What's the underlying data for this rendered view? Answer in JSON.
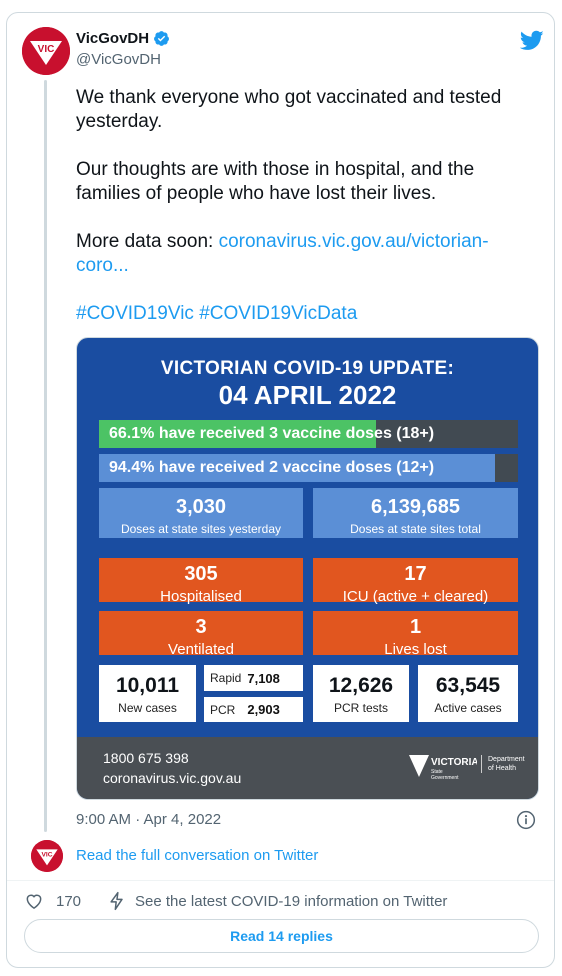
{
  "tweet": {
    "author_name": "VicGovDH",
    "handle": "@VicGovDH",
    "verified": true,
    "avatar_text": "VIC",
    "text": {
      "line1": "We thank everyone who got vaccinated and tested yesterday.",
      "line2": "Our thoughts are with those in hospital, and the families of people who have lost their lives.",
      "line3_prefix": "More data soon: ",
      "line3_link": "coronavirus.vic.gov.au/victorian-coro...",
      "hashtags": "#COVID19Vic #COVID19VicData"
    },
    "timestamp": "9:00 AM · Apr 4, 2022"
  },
  "infographic": {
    "title": "VICTORIAN COVID-19 UPDATE:",
    "date": "04 APRIL 2022",
    "bars": [
      {
        "label": "66.1% have received 3 vaccine doses (18+)",
        "fill_percent": 66.1,
        "color": "#4cc365"
      },
      {
        "label": "94.4% have received 2 vaccine doses (12+)",
        "fill_percent": 94.4,
        "color": "#5b8fd6"
      }
    ],
    "doses_yesterday": {
      "value": "3,030",
      "label": "Doses at state sites yesterday"
    },
    "doses_total": {
      "value": "6,139,685",
      "label": "Doses at state sites total"
    },
    "hospitalised": {
      "value": "305",
      "label": "Hospitalised"
    },
    "icu": {
      "value": "17",
      "label": "ICU (active + cleared)"
    },
    "ventilated": {
      "value": "3",
      "label": "Ventilated"
    },
    "lives_lost": {
      "value": "1",
      "label": "Lives lost"
    },
    "new_cases": {
      "value": "10,011",
      "label": "New cases"
    },
    "rapid": {
      "label": "Rapid",
      "value": "7,108"
    },
    "pcr": {
      "label": "PCR",
      "value": "2,903"
    },
    "pcr_tests": {
      "value": "12,626",
      "label": "PCR tests"
    },
    "active_cases": {
      "value": "63,545",
      "label": "Active cases"
    },
    "footer": {
      "phone": "1800 675 398",
      "website": "coronavirus.vic.gov.au",
      "logo_text": "VICTORIA",
      "logo_sub1": "State",
      "logo_sub2": "Government",
      "dept_line1": "Department",
      "dept_line2": "of Health"
    }
  },
  "conversation": {
    "read_full": "Read the full conversation on Twitter"
  },
  "actions": {
    "like_count": "170",
    "covid_info": "See the latest COVID-19 information on Twitter",
    "read_replies": "Read 14 replies"
  },
  "colors": {
    "brand_red": "#c8102e",
    "twitter_blue": "#1d9bf0",
    "infographic_blue": "#1a4da1",
    "tile_orange": "#e1561f"
  }
}
